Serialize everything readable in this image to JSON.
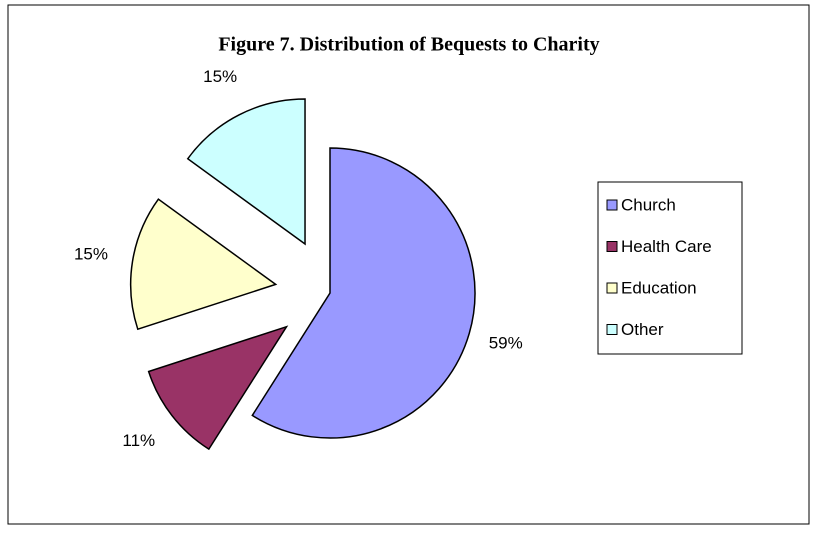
{
  "chart_data": {
    "type": "pie",
    "title": "Figure 7. Distribution of Bequests to Charity",
    "categories": [
      "Church",
      "Health Care",
      "Education",
      "Other"
    ],
    "values": [
      59,
      11,
      15,
      15
    ],
    "value_labels": [
      "59%",
      "11%",
      "15%",
      "15%"
    ],
    "colors": [
      "#9999ff",
      "#993366",
      "#ffffcc",
      "#ccffff"
    ],
    "legend": "right"
  }
}
